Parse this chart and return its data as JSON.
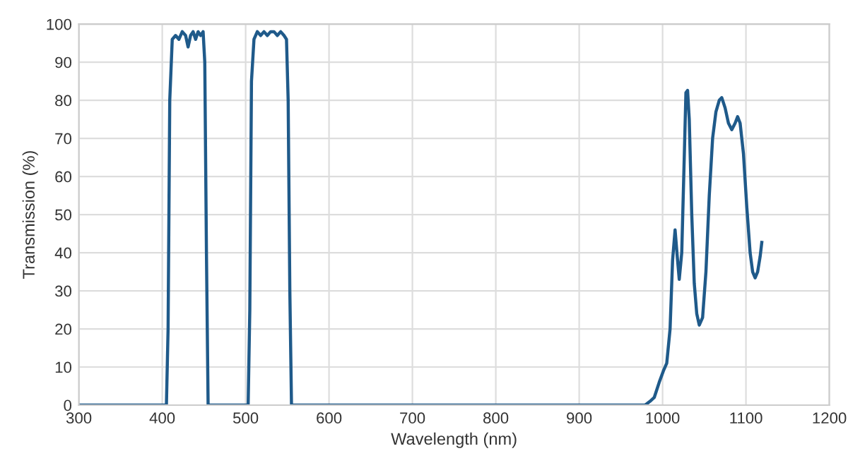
{
  "chart_data": {
    "type": "line",
    "xlabel": "Wavelength (nm)",
    "ylabel": "Transmission (%)",
    "xlim": [
      300,
      1200
    ],
    "xticks": [
      300,
      400,
      500,
      600,
      700,
      800,
      900,
      1000,
      1100,
      1200
    ],
    "ylim": [
      0,
      100
    ],
    "yticks": [
      0,
      10,
      20,
      30,
      40,
      50,
      60,
      70,
      80,
      90,
      100
    ],
    "grid": true,
    "marker": "none",
    "line_style": "solid",
    "series": [
      {
        "color": "#1f5a8a",
        "x": [
          300,
          405,
          407,
          409,
          412,
          416,
          420,
          424,
          428,
          431,
          434,
          437,
          440,
          443,
          446,
          449,
          451,
          453,
          455,
          458,
          503,
          505,
          507,
          510,
          514,
          518,
          522,
          526,
          530,
          534,
          538,
          542,
          546,
          549,
          551,
          553,
          555,
          970,
          979,
          985,
          990,
          996,
          1001,
          1005,
          1009,
          1012,
          1015,
          1018,
          1020,
          1023,
          1026,
          1028,
          1030,
          1032,
          1035,
          1038,
          1041,
          1044,
          1048,
          1052,
          1056,
          1060,
          1064,
          1068,
          1071,
          1075,
          1079,
          1083,
          1087,
          1090,
          1093,
          1097,
          1101,
          1105,
          1108,
          1111,
          1114,
          1117,
          1119
        ],
        "values": [
          0,
          0,
          20,
          80,
          96,
          97,
          96,
          98,
          97,
          94,
          97,
          98,
          96,
          98,
          97,
          98,
          90,
          40,
          0,
          0,
          0,
          25,
          85,
          96,
          98,
          97,
          98,
          97,
          98,
          98,
          97,
          98,
          97,
          96,
          80,
          30,
          0,
          0,
          0,
          1,
          2,
          6,
          9,
          11,
          20,
          38,
          46,
          38,
          33,
          40,
          65,
          82,
          82.6,
          75,
          50,
          32,
          24,
          21,
          23,
          35,
          55,
          70,
          77,
          80,
          80.7,
          78,
          74,
          72.3,
          74,
          75.7,
          74,
          66,
          52,
          40,
          35,
          33.4,
          35,
          39,
          42.7
        ]
      }
    ]
  }
}
